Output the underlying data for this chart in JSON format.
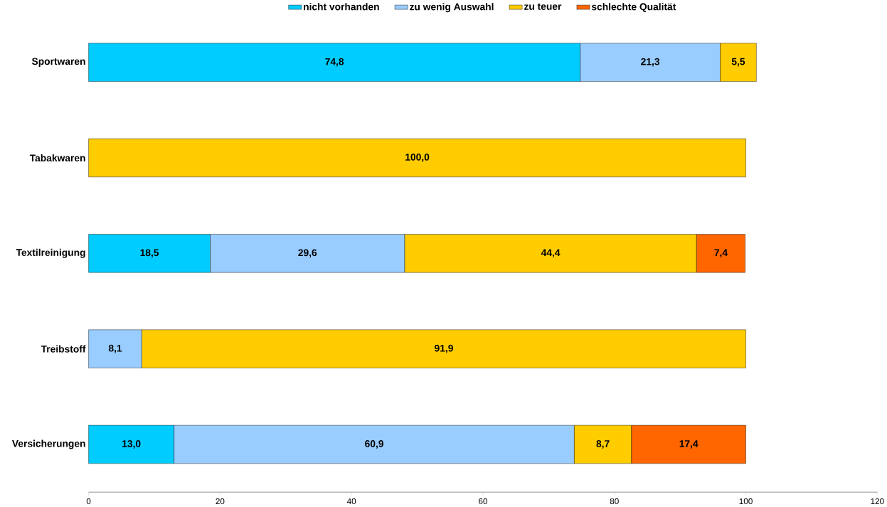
{
  "chart_data": {
    "type": "bar",
    "orientation": "horizontal",
    "stacked": true,
    "categories": [
      "Sportwaren",
      "Tabakwaren",
      "Textilreinigung",
      "Treibstoff",
      "Versicherungen"
    ],
    "series": [
      {
        "name": "nicht vorhanden",
        "color": "#00ccff",
        "values": [
          74.8,
          null,
          18.5,
          null,
          13.0
        ],
        "value_labels": [
          "74,8",
          null,
          "18,5",
          null,
          "13,0"
        ]
      },
      {
        "name": "zu wenig Auswahl",
        "color": "#99ccff",
        "values": [
          21.3,
          null,
          29.6,
          8.1,
          60.9
        ],
        "value_labels": [
          "21,3",
          null,
          "29,6",
          "8,1",
          "60,9"
        ]
      },
      {
        "name": "zu teuer",
        "color": "#ffcc00",
        "values": [
          5.5,
          100.0,
          44.4,
          91.9,
          8.7
        ],
        "value_labels": [
          "5,5",
          "100,0",
          "44,4",
          "91,9",
          "8,7"
        ]
      },
      {
        "name": "schlechte Qualität",
        "color": "#ff6600",
        "values": [
          null,
          null,
          7.4,
          null,
          17.4
        ],
        "value_labels": [
          null,
          null,
          "7,4",
          null,
          "17,4"
        ]
      }
    ],
    "xlim": [
      0,
      120
    ],
    "xticks": [
      0,
      20,
      40,
      60,
      80,
      100,
      120
    ],
    "legend": "top",
    "grid": false
  }
}
